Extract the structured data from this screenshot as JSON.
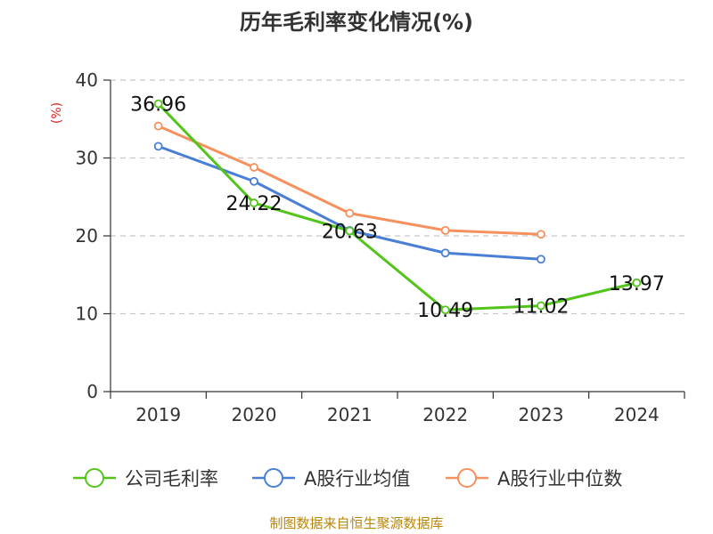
{
  "chart_data": {
    "type": "line",
    "title": "历年毛利率变化情况(%)",
    "ylabel": "(%)",
    "categories": [
      "2019",
      "2020",
      "2021",
      "2022",
      "2023",
      "2024"
    ],
    "ylim": [
      0,
      40
    ],
    "yticks": [
      0,
      10,
      20,
      30,
      40
    ],
    "grid": true,
    "legend_position": "bottom",
    "series": [
      {
        "name": "公司毛利率",
        "color": "#52c41a",
        "values": [
          36.96,
          24.22,
          20.63,
          10.49,
          11.02,
          13.97
        ],
        "labels": [
          "36.96",
          "24.22",
          "20.63",
          "10.49",
          "11.02",
          "13.97"
        ]
      },
      {
        "name": "A股行业均值",
        "color": "#4a7fd6",
        "values": [
          31.5,
          27.0,
          20.7,
          17.8,
          17.0,
          null
        ]
      },
      {
        "name": "A股行业中位数",
        "color": "#f5915e",
        "values": [
          34.1,
          28.8,
          22.9,
          20.7,
          20.2,
          null
        ]
      }
    ]
  },
  "source_text": "制图数据来自恒生聚源数据库"
}
